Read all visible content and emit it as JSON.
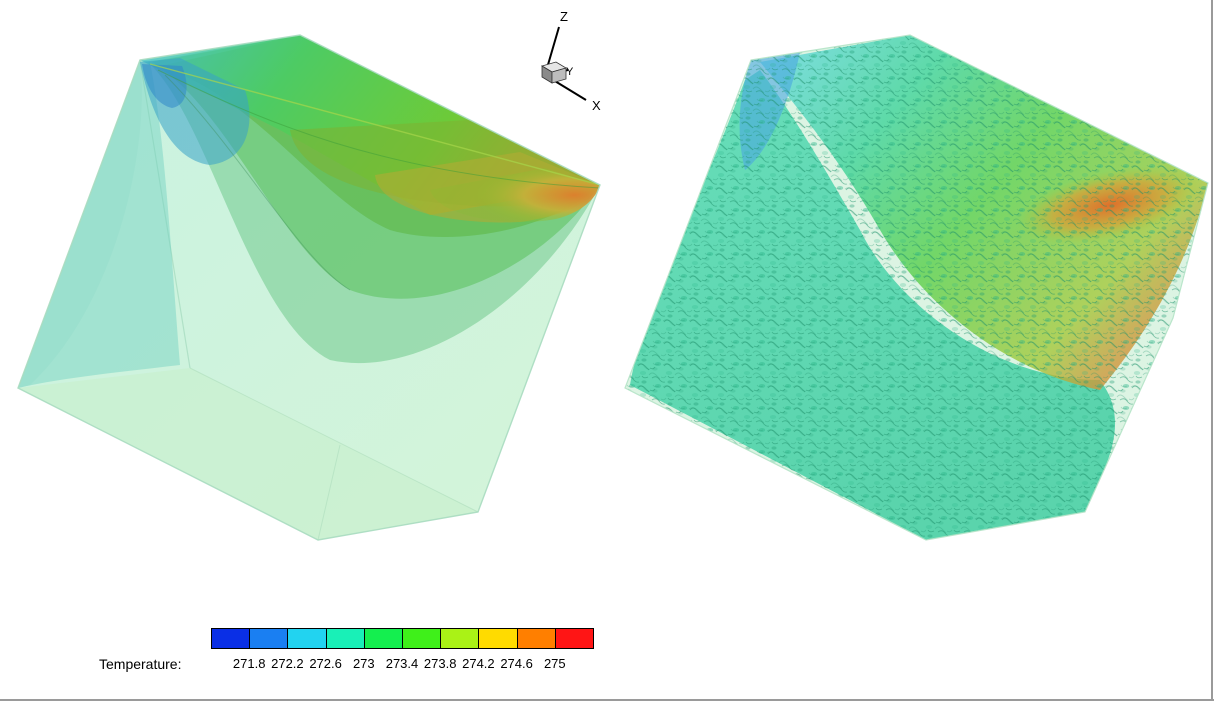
{
  "axes_triad": {
    "z_label": "Z",
    "y_label": "Y",
    "x_label": "X"
  },
  "colormap": {
    "title": "Temperature:",
    "ticks": [
      "271.8",
      "272.2",
      "272.6",
      "273",
      "273.4",
      "273.8",
      "274.2",
      "274.6",
      "275"
    ],
    "bands": [
      "#0a2fe6",
      "#1a7ff2",
      "#22d3f0",
      "#19f0b7",
      "#14ef4f",
      "#3ff01a",
      "#aaf216",
      "#ffdb00",
      "#ff7f00",
      "#ff1515"
    ]
  },
  "panels": [
    {
      "name": "smooth-contour-volume"
    },
    {
      "name": "turbulent-isosurface-volume"
    }
  ]
}
